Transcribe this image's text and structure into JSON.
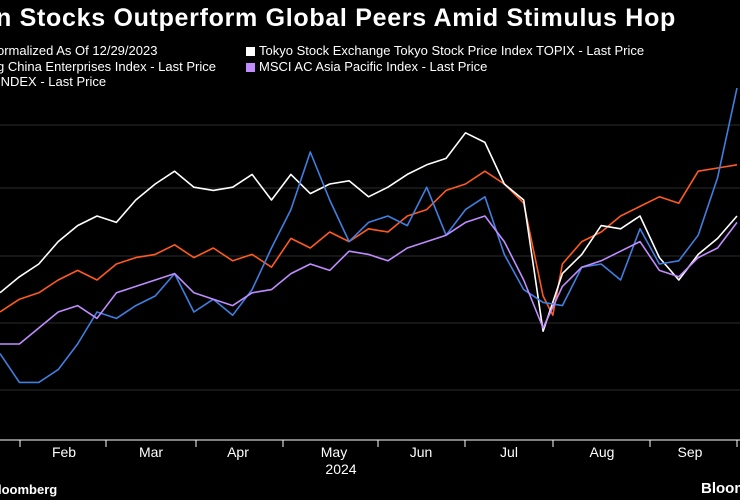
{
  "title": "n Stocks Outperform Global Peers Amid Stimulus Hop",
  "legend": [
    {
      "label": "ormalized As Of 12/29/2023",
      "color": "#ff5a1f"
    },
    {
      "label": "Tokyo Stock Exchange Tokyo Stock Price Index TOPIX - Last Price",
      "color": "#ffffff"
    },
    {
      "label": "g China Enterprises Index - Last Price",
      "color": "#3f7fe0"
    },
    {
      "label": "MSCI AC Asia Pacific Index - Last Price",
      "color": "#c08cff"
    },
    {
      "label": "INDEX - Last Price",
      "color": "#ff5a1f"
    }
  ],
  "footer": {
    "source": "loomberg",
    "brand": "Bloom"
  },
  "chart_data": {
    "type": "line",
    "title": "n Stocks Outperform Global Peers Amid Stimulus Hop",
    "x_ticks": [
      "Feb",
      "Mar",
      "Apr",
      "May",
      "Jun",
      "Jul",
      "Aug",
      "Sep"
    ],
    "x_year": "2024",
    "xlim": [
      0,
      38
    ],
    "ylim": [
      0,
      100
    ],
    "grid": true,
    "series": [
      {
        "name": "INDEX - Last Price",
        "color": "#ff5a1f",
        "x": [
          0,
          1,
          2,
          3,
          4,
          5,
          6,
          7,
          8,
          9,
          10,
          11,
          12,
          13,
          14,
          15,
          16,
          17,
          18,
          19,
          20,
          21,
          22,
          23,
          24,
          25,
          26,
          27,
          28,
          28.5,
          29,
          30,
          31,
          32,
          33,
          34,
          35,
          36,
          37,
          38
        ],
        "y": [
          40,
          44,
          46,
          50,
          53,
          50,
          55,
          57,
          58,
          61,
          57,
          60,
          56,
          58,
          54,
          63,
          60,
          65,
          62,
          66,
          65,
          70,
          72,
          78,
          80,
          84,
          80,
          74,
          45,
          39,
          55,
          62,
          65,
          70,
          73,
          76,
          74,
          84,
          85,
          86
        ]
      },
      {
        "name": "Tokyo Stock Exchange Tokyo Stock Price Index TOPIX - Last Price",
        "color": "#ffffff",
        "x": [
          0,
          1,
          2,
          3,
          4,
          5,
          6,
          7,
          8,
          9,
          10,
          11,
          12,
          13,
          14,
          15,
          16,
          17,
          18,
          19,
          20,
          21,
          22,
          23,
          24,
          25,
          26,
          27,
          28,
          29,
          30,
          31,
          32,
          33,
          34,
          35,
          36,
          37,
          38
        ],
        "y": [
          46,
          51,
          55,
          62,
          67,
          70,
          68,
          75,
          80,
          84,
          79,
          78,
          79,
          83,
          75,
          83,
          77,
          80,
          81,
          76,
          79,
          83,
          86,
          88,
          96,
          93,
          80,
          75,
          34,
          52,
          58,
          67,
          66,
          70,
          57,
          50,
          58,
          63,
          70
        ]
      },
      {
        "name": "g China Enterprises Index - Last Price",
        "color": "#3f7fe0",
        "x": [
          0,
          1,
          2,
          3,
          4,
          5,
          6,
          7,
          8,
          9,
          10,
          11,
          12,
          13,
          14,
          15,
          16,
          17,
          18,
          19,
          20,
          21,
          22,
          23,
          24,
          25,
          26,
          27,
          28,
          29,
          30,
          31,
          32,
          33,
          34,
          35,
          36,
          37,
          38
        ],
        "y": [
          27,
          18,
          18,
          22,
          30,
          40,
          38,
          42,
          45,
          52,
          40,
          44,
          39,
          47,
          60,
          72,
          90,
          75,
          62,
          68,
          70,
          67,
          79,
          64,
          72,
          76,
          58,
          47,
          43,
          42,
          54,
          55,
          50,
          66,
          55,
          56,
          64,
          82,
          110
        ]
      },
      {
        "name": "MSCI AC Asia Pacific Index - Last Price",
        "color": "#c08cff",
        "x": [
          0,
          1,
          2,
          3,
          4,
          5,
          6,
          7,
          8,
          9,
          10,
          11,
          12,
          13,
          14,
          15,
          16,
          17,
          18,
          19,
          20,
          21,
          22,
          23,
          24,
          25,
          26,
          27,
          28,
          29,
          30,
          31,
          32,
          33,
          34,
          35,
          36,
          37,
          38
        ],
        "y": [
          30,
          30,
          35,
          40,
          42,
          38,
          46,
          48,
          50,
          52,
          46,
          44,
          42,
          46,
          47,
          52,
          55,
          53,
          59,
          58,
          56,
          60,
          62,
          64,
          68,
          70,
          62,
          50,
          35,
          48,
          54,
          56,
          59,
          62,
          53,
          51,
          57,
          60,
          68
        ]
      }
    ]
  }
}
